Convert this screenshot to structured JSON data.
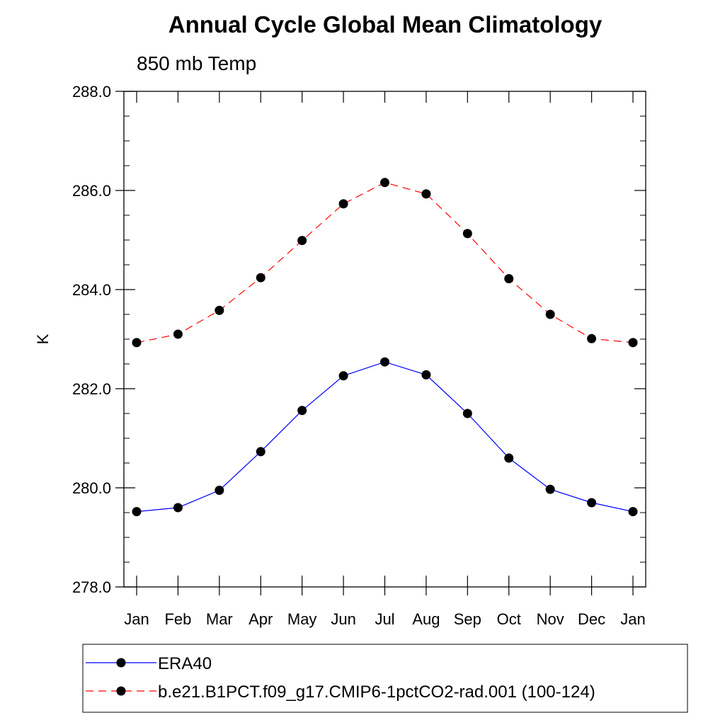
{
  "chart_data": {
    "type": "line",
    "title": "Annual Cycle Global Mean Climatology",
    "subtitle": "850 mb Temp",
    "xlabel": "",
    "ylabel": "K",
    "ylim": [
      278.0,
      288.0
    ],
    "yticks": [
      "278.0",
      "280.0",
      "282.0",
      "284.0",
      "286.0",
      "288.0"
    ],
    "categories": [
      "Jan",
      "Feb",
      "Mar",
      "Apr",
      "May",
      "Jun",
      "Jul",
      "Aug",
      "Sep",
      "Oct",
      "Nov",
      "Dec",
      "Jan"
    ],
    "grid": false,
    "legend_position": "bottom",
    "series": [
      {
        "name": "ERA40",
        "color": "#0000ff",
        "line_style": "solid",
        "values": [
          279.52,
          279.6,
          279.95,
          280.73,
          281.56,
          282.26,
          282.54,
          282.28,
          281.5,
          280.6,
          279.97,
          279.7,
          279.52
        ]
      },
      {
        "name": "b.e21.B1PCT.f09_g17.CMIP6-1pctCO2-rad.001 (100-124)",
        "color": "#ff0000",
        "line_style": "dashed",
        "values": [
          282.93,
          283.1,
          283.58,
          284.24,
          284.99,
          285.73,
          286.16,
          285.93,
          285.13,
          284.22,
          283.5,
          283.01,
          282.93
        ]
      }
    ]
  }
}
